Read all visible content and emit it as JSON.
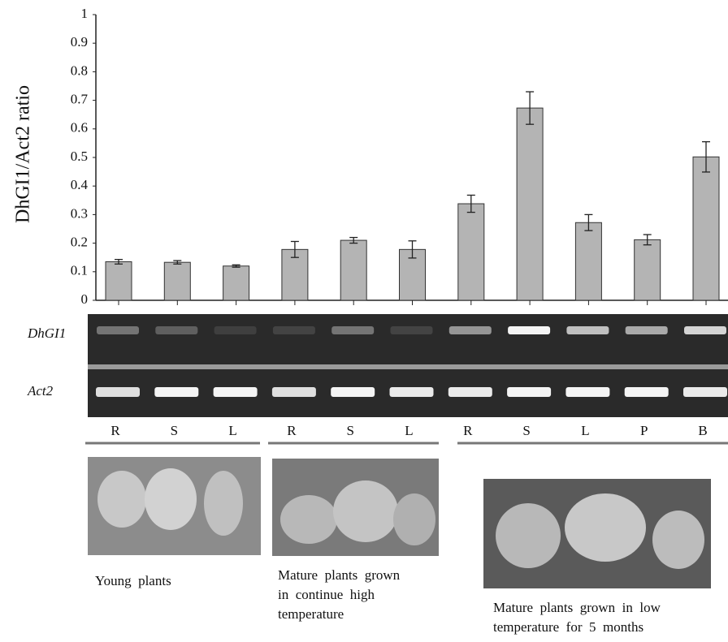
{
  "chart_data": {
    "type": "bar",
    "y_label": "DhGI1/Act2 ratio",
    "categories": [
      "R",
      "S",
      "L",
      "R",
      "S",
      "L",
      "R",
      "S",
      "L",
      "P",
      "B"
    ],
    "values": [
      0.135,
      0.133,
      0.12,
      0.178,
      0.21,
      0.178,
      0.338,
      0.673,
      0.272,
      0.212,
      0.502
    ],
    "errors": [
      0.008,
      0.006,
      0.004,
      0.028,
      0.01,
      0.03,
      0.03,
      0.057,
      0.028,
      0.018,
      0.053
    ],
    "color": "#b4b4b4",
    "ylim": [
      0,
      1
    ],
    "yticks": [
      0,
      0.1,
      0.2,
      0.3,
      0.4,
      0.5,
      0.6,
      0.7,
      0.8,
      0.9,
      1
    ],
    "gel_rows": [
      "DhGI1",
      "Act2"
    ],
    "groups": [
      {
        "label": [
          "Young  plants"
        ]
      },
      {
        "label": [
          "Mature  plants  grown",
          "in  continue  high",
          "temperature"
        ]
      },
      {
        "label": [
          "Mature  plants  grown  in  low",
          "temperature  for  5  months"
        ]
      }
    ]
  }
}
